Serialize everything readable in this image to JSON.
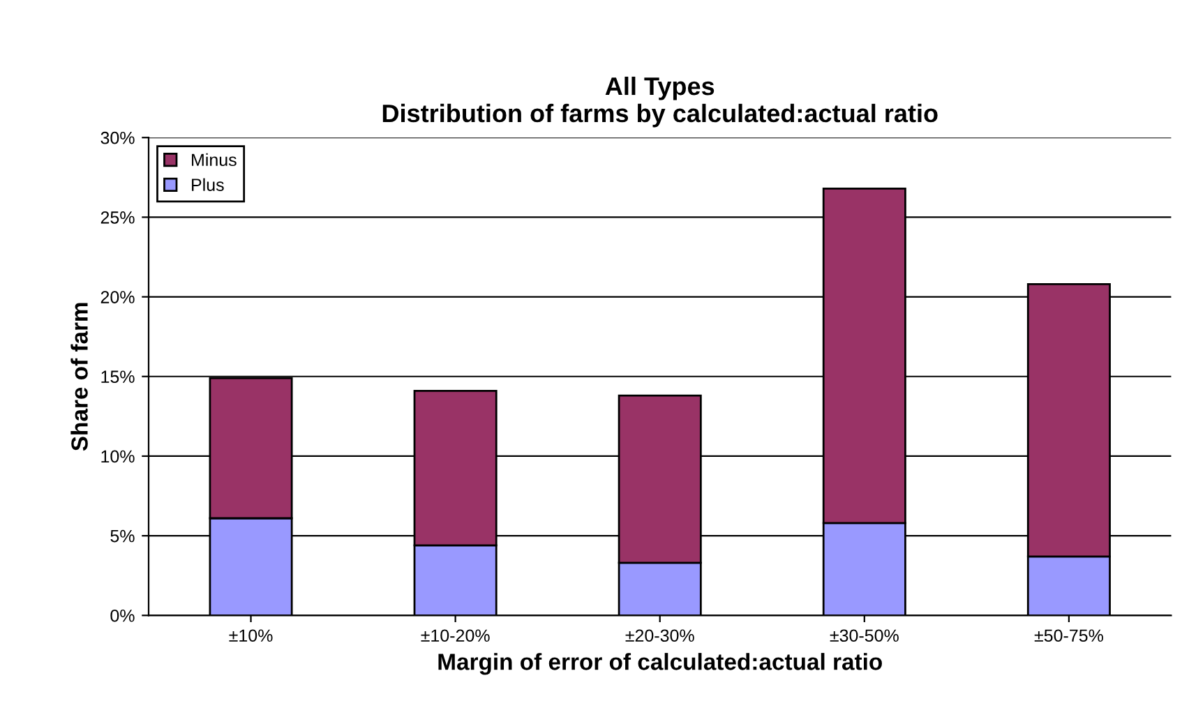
{
  "chart_data": {
    "type": "bar",
    "title": "All Types\nDistribution of farms by calculated:actual ratio",
    "xlabel": "Margin of error of calculated:actual ratio",
    "ylabel": "Share of farm",
    "categories": [
      "±10%",
      "±10-20%",
      "±20-30%",
      "±30-50%",
      "±50-75%"
    ],
    "stacked": true,
    "series": [
      {
        "name": "Plus",
        "color": "#9999ff",
        "values": [
          6.1,
          4.4,
          3.3,
          5.8,
          3.7
        ]
      },
      {
        "name": "Minus",
        "color": "#993366",
        "values": [
          8.8,
          9.7,
          10.5,
          21.0,
          17.1
        ]
      }
    ],
    "ylim": [
      0,
      30
    ],
    "yticks": [
      {
        "value": 0,
        "label": "0%"
      },
      {
        "value": 5,
        "label": "5%"
      },
      {
        "value": 10,
        "label": "10%"
      },
      {
        "value": 15,
        "label": "15%"
      },
      {
        "value": 20,
        "label": "20%"
      },
      {
        "value": 25,
        "label": "25%"
      },
      {
        "value": 30,
        "label": "30%"
      }
    ],
    "grid": "y",
    "legend": "top left"
  }
}
